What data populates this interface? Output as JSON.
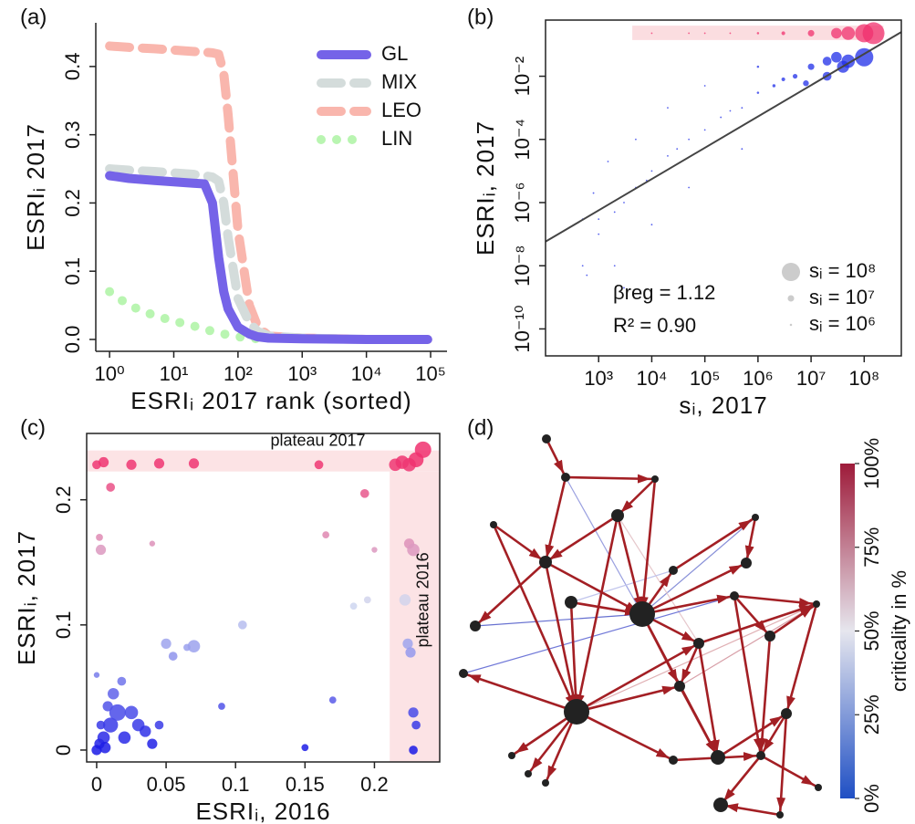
{
  "chart_data": [
    {
      "type": "line",
      "label": "(a)",
      "xlabel": "ESRIᵢ 2017 rank (sorted)",
      "ylabel": "ESRIᵢ 2017",
      "xscale": "log",
      "xlim": [
        0.61,
        180000
      ],
      "ylim": [
        -0.0174,
        0.464
      ],
      "xticks": [
        {
          "value": 1,
          "label": "10⁰"
        },
        {
          "value": 10,
          "label": "10¹"
        },
        {
          "value": 100,
          "label": "10²"
        },
        {
          "value": 1000,
          "label": "10³"
        },
        {
          "value": 10000,
          "label": "10⁴"
        },
        {
          "value": 100000,
          "label": "10⁵"
        }
      ],
      "yticks": [
        {
          "value": 0,
          "label": "0.0"
        },
        0.1,
        0.2,
        0.3,
        0.4
      ],
      "x": [
        1,
        2,
        5,
        10,
        20,
        30,
        40,
        50,
        60,
        70,
        100,
        150,
        200,
        300,
        1000,
        10000,
        90000
      ],
      "series": [
        {
          "name": "GL",
          "color": "#7563e8",
          "style": "solid",
          "values": [
            0.24,
            0.236,
            0.233,
            0.231,
            0.229,
            0.228,
            0.2,
            0.12,
            0.07,
            0.045,
            0.018,
            0.008,
            0.004,
            0.002,
            0.001,
            0,
            0
          ]
        },
        {
          "name": "MIX",
          "color": "#d4dcdb",
          "style": "dashed",
          "values": [
            0.25,
            0.248,
            0.246,
            0.244,
            0.242,
            0.24,
            0.238,
            0.232,
            0.2,
            0.15,
            0.06,
            0.025,
            0.012,
            0.005,
            0.002,
            0,
            0
          ]
        },
        {
          "name": "LEO",
          "color": "#f9b6ad",
          "style": "dashed",
          "values": [
            0.43,
            0.428,
            0.426,
            0.424,
            0.422,
            0.421,
            0.42,
            0.418,
            0.39,
            0.33,
            0.16,
            0.05,
            0.02,
            0.005,
            0.002,
            0,
            0
          ]
        },
        {
          "name": "LIN",
          "color": "#b9f5b1",
          "style": "dotted",
          "values": [
            0.07,
            0.05,
            0.035,
            0.027,
            0.02,
            0.015,
            0.012,
            0.01,
            0.008,
            0.007,
            0.004,
            0.002,
            0.001,
            null,
            null,
            null,
            null
          ]
        }
      ],
      "legend": "upper right"
    },
    {
      "type": "scatter",
      "label": "(b)",
      "xlabel": "sᵢ, 2017",
      "ylabel": "ESRIᵢ, 2017",
      "xscale": "log",
      "yscale": "log",
      "xlim": [
        100,
        500000000
      ],
      "ylim": [
        1.4e-11,
        0.6
      ],
      "xticks": [
        {
          "value": 1000,
          "label": "10³"
        },
        {
          "value": 10000,
          "label": "10⁴"
        },
        {
          "value": 100000,
          "label": "10⁵"
        },
        {
          "value": 1000000,
          "label": "10⁶"
        },
        {
          "value": 10000000,
          "label": "10⁷"
        },
        {
          "value": 100000000,
          "label": "10⁸"
        }
      ],
      "yticks": [
        {
          "value": 1e-10,
          "label": "10⁻¹⁰"
        },
        {
          "value": 1e-08,
          "label": "10⁻⁸"
        },
        {
          "value": 1e-06,
          "label": "10⁻⁶"
        },
        {
          "value": 0.0001,
          "label": "10⁻⁴"
        },
        {
          "value": 0.01,
          "label": "10⁻²"
        }
      ],
      "points": {
        "color": "#1f2ee8",
        "x": [
          500,
          500,
          600,
          800,
          1000,
          1000,
          1500,
          2000,
          2000,
          3000,
          3000,
          5000,
          5000,
          8000,
          10000,
          10000,
          20000,
          20000,
          30000,
          50000,
          50000,
          100000,
          100000,
          200000,
          300000,
          500000,
          500000,
          1000000,
          1000000,
          2000000,
          3000000,
          5000000,
          8000000,
          10000000,
          20000000,
          20000000,
          30000000,
          40000000,
          50000000,
          100000000
        ],
        "y": [
          1e-08,
          3e-07,
          5e-09,
          2e-06,
          3e-07,
          1e-07,
          2e-05,
          5e-07,
          1e-08,
          1e-06,
          2e-09,
          3e-06,
          0.0001,
          5e-06,
          1e-05,
          2e-07,
          3e-05,
          0.001,
          5e-05,
          0.0001,
          3e-06,
          0.0002,
          0.005,
          0.0005,
          0.0008,
          0.001,
          5e-05,
          0.003,
          0.02,
          0.005,
          0.008,
          0.01,
          0.006,
          0.02,
          0.03,
          0.01,
          0.04,
          0.02,
          0.03,
          0.04
        ]
      },
      "plateau": {
        "color": "#f0306e",
        "x": [
          10000,
          50000,
          100000,
          300000,
          1000000,
          3000000,
          10000000,
          30000000,
          50000000,
          100000000,
          150000000
        ],
        "y": [
          0.23,
          0.23,
          0.23,
          0.23,
          0.23,
          0.23,
          0.23,
          0.23,
          0.23,
          0.23,
          0.23
        ]
      },
      "plateau_band": {
        "color": "#fbdde0",
        "x": [
          4300,
          230000000
        ],
        "y": [
          0.14,
          0.4
        ]
      },
      "regression": {
        "color": "#444444",
        "x": [
          100,
          500000000
        ],
        "y": [
          5.8e-08,
          0.25
        ]
      },
      "annotations": [
        "βreg = 1.12",
        "R² = 0.90"
      ],
      "size_legend": [
        {
          "value": 100000000,
          "label": "sᵢ = 10⁸"
        },
        {
          "value": 10000000,
          "label": "sᵢ = 10⁷"
        },
        {
          "value": 1000000,
          "label": "sᵢ = 10⁶"
        }
      ],
      "size_legend_color": "#cccccc"
    },
    {
      "type": "bubble",
      "label": "(c)",
      "xlabel": "ESRIᵢ, 2016",
      "ylabel": "ESRIᵢ, 2017",
      "xlim": [
        -0.0072,
        0.247
      ],
      "ylim": [
        -0.0095,
        0.253
      ],
      "xticks": [
        0,
        0.05,
        0.1,
        0.15,
        0.2
      ],
      "yticks": [
        0,
        0.1,
        0.2
      ],
      "colors": [
        "#1a1ae6",
        "#d0d8f0",
        "#f0306e"
      ],
      "x": [
        0.002,
        0.005,
        0.01,
        0.015,
        0.02,
        0.003,
        0.008,
        0.012,
        0.025,
        0.03,
        0.035,
        0.018,
        0,
        0.006,
        0.04,
        0.045,
        0.05,
        0.055,
        0.07,
        0.065,
        0.105,
        0.09,
        0.17,
        0.15,
        0.195,
        0.185,
        0.002,
        0.003,
        0.01,
        0,
        0.04,
        0.165,
        0.2,
        0.193,
        0,
        0.005,
        0.025,
        0.045,
        0.07,
        0.16,
        0.215,
        0.22,
        0.225,
        0.23,
        0.235,
        0.225,
        0.228,
        0.222,
        0.224,
        0.226,
        0.228,
        0.23,
        0.228
      ],
      "y": [
        0.005,
        0.01,
        0.02,
        0.03,
        0.01,
        0.02,
        0.035,
        0.045,
        0.03,
        0.02,
        0.015,
        0.055,
        0,
        0.002,
        0.005,
        0.02,
        0.085,
        0.075,
        0.083,
        0.082,
        0.1,
        0.035,
        0.04,
        0.002,
        0.12,
        0.115,
        0.17,
        0.16,
        0.21,
        0.06,
        0.165,
        0.172,
        0.16,
        0.205,
        0.228,
        0.23,
        0.228,
        0.229,
        0.229,
        0.228,
        0.228,
        0.23,
        0.228,
        0.232,
        0.24,
        0.165,
        0.16,
        0.12,
        0.085,
        0.078,
        0.03,
        0.02,
        0
      ],
      "sizes": [
        30000000,
        50000000,
        80000000,
        100000000,
        50000000,
        20000000,
        30000000,
        40000000,
        60000000,
        50000000,
        40000000,
        20000000,
        30000000,
        40000000,
        30000000,
        20000000,
        30000000,
        20000000,
        50000000,
        10000000,
        20000000,
        10000000,
        10000000,
        10000000,
        10000000,
        10000000,
        10000000,
        30000000,
        20000000,
        5000000,
        5000000,
        10000000,
        5000000,
        20000000,
        20000000,
        30000000,
        30000000,
        30000000,
        30000000,
        20000000,
        50000000,
        60000000,
        60000000,
        80000000,
        100000000,
        30000000,
        50000000,
        40000000,
        30000000,
        30000000,
        30000000,
        20000000,
        20000000
      ],
      "bands": [
        {
          "label": "plateau 2017",
          "color": "#fce3e5",
          "x": [
            -0.0072,
            0.247
          ],
          "y": [
            0.2226,
            0.2394
          ]
        },
        {
          "label": "plateau 2016",
          "color": "#fce3e5",
          "x": [
            0.211,
            0.247
          ],
          "y": [
            -0.0095,
            0.2226
          ]
        }
      ]
    },
    {
      "type": "network",
      "label": "(d)",
      "colorbar": {
        "label": "criticality in %",
        "lim": [
          0,
          100
        ],
        "colors": [
          "#1f4fc4",
          "#e6e6ee",
          "#9e1b3a"
        ],
        "ticks": [
          {
            "value": 0,
            "label": "0%"
          },
          {
            "value": 25,
            "label": "25%"
          },
          {
            "value": 50,
            "label": "50%"
          },
          {
            "value": 75,
            "label": "75%"
          },
          {
            "value": 100,
            "label": "100%"
          }
        ]
      }
    }
  ]
}
